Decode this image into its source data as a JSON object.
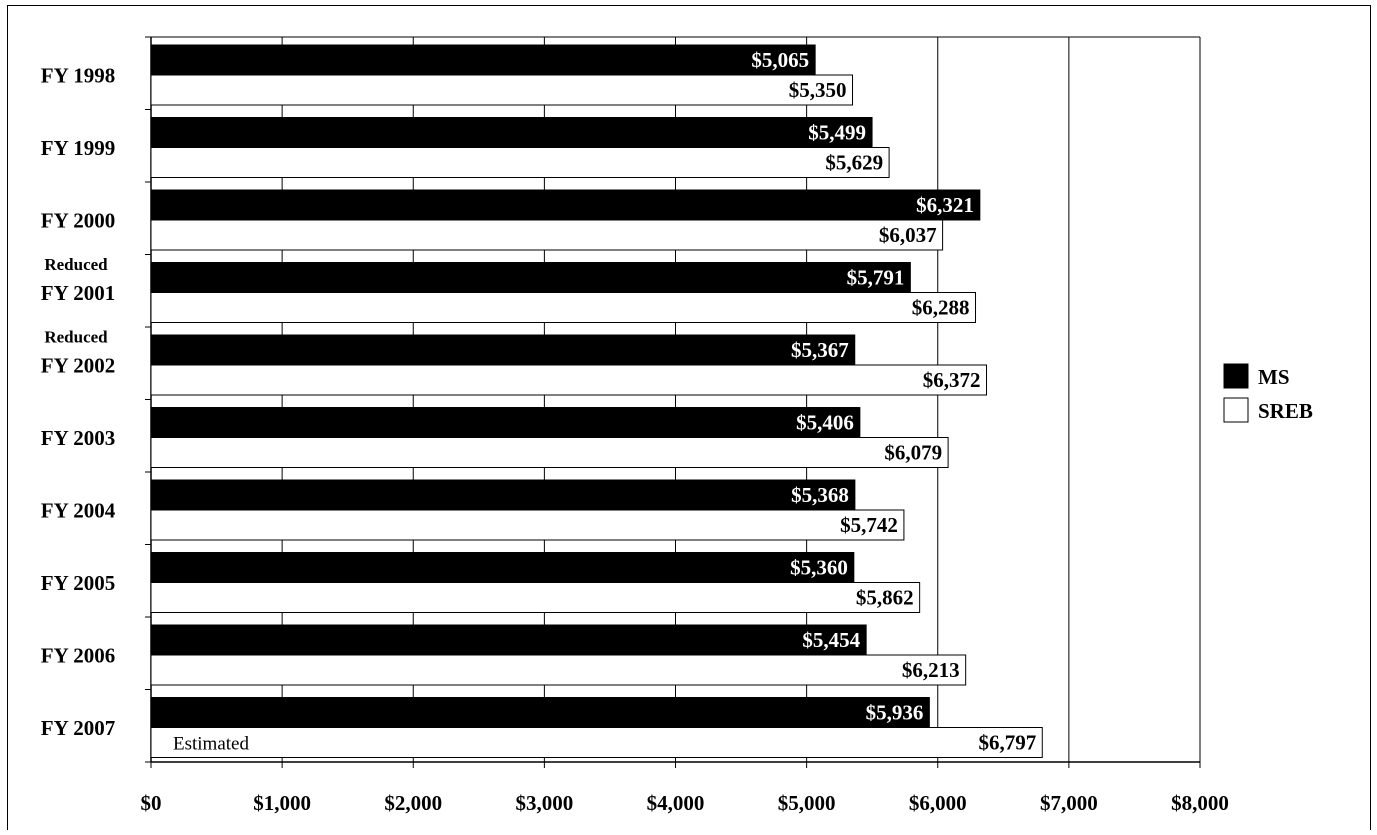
{
  "chart_data": {
    "type": "bar",
    "orientation": "horizontal",
    "categories": [
      "FY 1998",
      "FY 1999",
      "FY 2000",
      "FY 2001",
      "FY 2002",
      "FY 2003",
      "FY 2004",
      "FY 2005",
      "FY 2006",
      "FY 2007"
    ],
    "series": [
      {
        "name": "MS",
        "color": "#000000",
        "values": [
          5065,
          5499,
          6321,
          5791,
          5367,
          5406,
          5368,
          5360,
          5454,
          5936
        ]
      },
      {
        "name": "SREB",
        "color": "#ffffff",
        "values": [
          5350,
          5629,
          6037,
          6288,
          6372,
          6079,
          5742,
          5862,
          6213,
          6797
        ]
      }
    ],
    "data_labels": {
      "MS": [
        "$5,065",
        "$5,499",
        "$6,321",
        "$5,791",
        "$5,367",
        "$5,406",
        "$5,368",
        "$5,360",
        "$5,454",
        "$5,936"
      ],
      "SREB": [
        "$5,350",
        "$5,629",
        "$6,037",
        "$6,288",
        "$6,372",
        "$6,079",
        "$5,742",
        "$5,862",
        "$6,213",
        "$6,797"
      ]
    },
    "category_annotations": [
      {
        "category": "FY 2001",
        "text": "Reduced"
      },
      {
        "category": "FY 2002",
        "text": "Reduced"
      }
    ],
    "bar_annotations": [
      {
        "category": "FY 2007",
        "series": "SREB",
        "text": "Estimated"
      }
    ],
    "x_ticks": [
      0,
      1000,
      2000,
      3000,
      4000,
      5000,
      6000,
      7000,
      8000
    ],
    "x_tick_labels": [
      "$0",
      "$1,000",
      "$2,000",
      "$3,000",
      "$4,000",
      "$5,000",
      "$6,000",
      "$7,000",
      "$8,000"
    ],
    "xlim": [
      0,
      8000
    ],
    "grid": "vertical",
    "legend_position": "right",
    "title": "",
    "xlabel": "",
    "ylabel": ""
  }
}
